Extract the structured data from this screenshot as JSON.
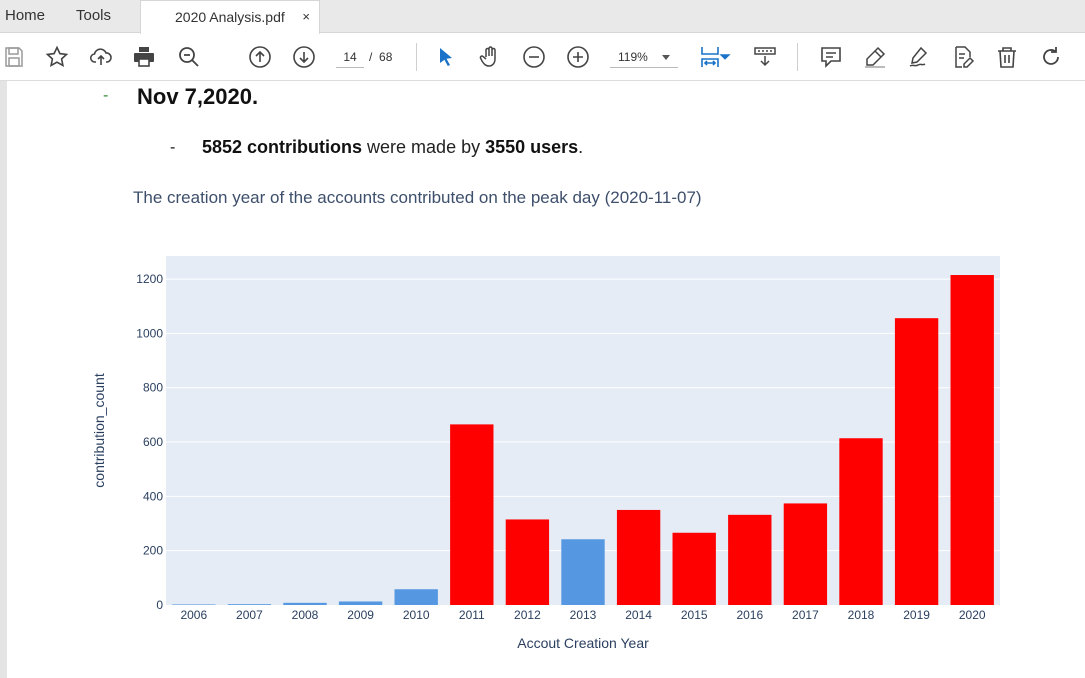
{
  "tabs": {
    "home": "Home",
    "tools": "Tools",
    "document": "2020 Analysis.pdf",
    "close": "×"
  },
  "toolbar": {
    "page_current": "14",
    "page_separator": "/",
    "page_total": "68",
    "zoom": "119%",
    "icons": [
      "save-icon",
      "bookmark-star-icon",
      "upload-cloud-icon",
      "print-icon",
      "search-zoom-icon",
      "prev-page-icon",
      "next-page-icon",
      "zoom-out-icon",
      "zoom-in-icon",
      "select-cursor-icon",
      "hand-icon",
      "fit-width-icon",
      "scroll-mode-icon",
      "comment-icon",
      "highlight-icon",
      "sign-icon",
      "edit-pdf-icon",
      "delete-icon",
      "rotate-icon"
    ],
    "accent_color": "#1a73c8"
  },
  "doc": {
    "bullet1_dash": "-",
    "bullet1": "Nov 7,2020.",
    "bullet2_dash": "-",
    "bullet2_contrib": "5852 contributions",
    "bullet2_mid": " were made by ",
    "bullet2_users": "3550 users",
    "bullet2_end": ".",
    "chart_title": "The creation year of the accounts contributed on the peak day (2020-11-07)"
  },
  "chart_data": {
    "type": "bar",
    "categories": [
      "2006",
      "2007",
      "2008",
      "2009",
      "2010",
      "2011",
      "2012",
      "2013",
      "2014",
      "2015",
      "2016",
      "2017",
      "2018",
      "2019",
      "2020"
    ],
    "values": [
      2,
      3,
      8,
      13,
      58,
      665,
      315,
      242,
      350,
      266,
      332,
      374,
      614,
      1056,
      1215
    ],
    "bar_colors": [
      "#5597e0",
      "#5597e0",
      "#5597e0",
      "#5597e0",
      "#5597e0",
      "#ff0000",
      "#ff0000",
      "#5597e0",
      "#ff0000",
      "#ff0000",
      "#ff0000",
      "#ff0000",
      "#ff0000",
      "#ff0000",
      "#ff0000"
    ],
    "xlabel": "Accout Creation Year",
    "ylabel": "contribution_count",
    "ylim": [
      0,
      1285
    ],
    "yticks": [
      0,
      200,
      400,
      600,
      800,
      1000,
      1200
    ],
    "grid": true,
    "plot_background": "#e5ecf6"
  }
}
